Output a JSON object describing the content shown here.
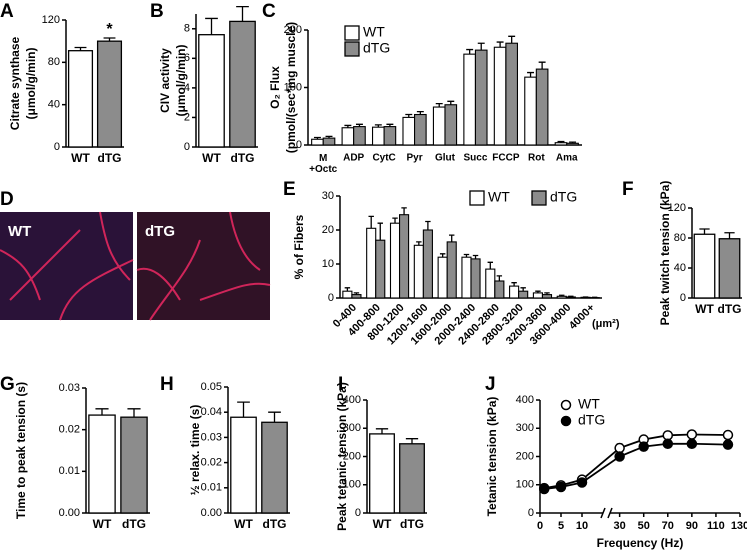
{
  "chart_data": [
    {
      "panel": "A",
      "type": "bar",
      "ylabel": [
        "Citrate synthase",
        "(μmol/g/min)"
      ],
      "categories": [
        "WT",
        "dTG"
      ],
      "values": [
        91,
        100
      ],
      "errors": [
        3,
        3
      ],
      "colors": [
        "#ffffff",
        "#8c8c8c"
      ],
      "ylim": [
        0,
        120
      ],
      "yticks": [
        0,
        40,
        80,
        120
      ],
      "annotation": "*"
    },
    {
      "panel": "B",
      "type": "bar",
      "ylabel": [
        "CIV activity",
        "(μmol/g/min)"
      ],
      "categories": [
        "WT",
        "dTG"
      ],
      "values": [
        7.6,
        8.5
      ],
      "errors": [
        1.1,
        1.0
      ],
      "colors": [
        "#ffffff",
        "#8c8c8c"
      ],
      "ylim": [
        0,
        9
      ],
      "yticks": [
        0,
        2,
        4,
        6,
        8
      ]
    },
    {
      "panel": "C",
      "type": "bar",
      "ylabel": [
        "O₂ Flux",
        "(pmol/(sec*mg muscle)"
      ],
      "categories": [
        "M +Octc",
        "ADP",
        "CytC",
        "Pyr",
        "Glut",
        "Succ",
        "FCCP",
        "Rot",
        "Ama"
      ],
      "series": [
        {
          "name": "WT",
          "color": "#ffffff",
          "values": [
            10,
            30,
            31,
            48,
            66,
            158,
            170,
            118,
            4
          ],
          "errors": [
            3,
            4,
            4,
            5,
            6,
            8,
            9,
            8,
            2
          ]
        },
        {
          "name": "dTG",
          "color": "#8c8c8c",
          "values": [
            12,
            32,
            32,
            53,
            70,
            165,
            177,
            132,
            3
          ],
          "errors": [
            3,
            4,
            4,
            5,
            6,
            12,
            12,
            12,
            2
          ]
        }
      ],
      "ylim": [
        0,
        200
      ],
      "yticks": [
        0,
        100,
        200
      ]
    },
    {
      "panel": "E",
      "type": "bar",
      "ylabel": "% of Fibers",
      "xlabel": "(μm²)",
      "categories": [
        "0-400",
        "400-800",
        "800-1200",
        "1200-1600",
        "1600-2000",
        "2000-2400",
        "2400-2800",
        "2800-3200",
        "3200-3600",
        "3600-4000",
        "4000+"
      ],
      "series": [
        {
          "name": "WT",
          "color": "#ffffff",
          "values": [
            2,
            20.5,
            22,
            15.5,
            12,
            12,
            8.5,
            3.5,
            1.5,
            0.5,
            0.2
          ],
          "errors": [
            1,
            3.5,
            1.5,
            1,
            1,
            0.8,
            2,
            1,
            0.5,
            0.3,
            0.1
          ]
        },
        {
          "name": "dTG",
          "color": "#8c8c8c",
          "values": [
            1,
            17,
            24.5,
            20,
            16.5,
            11.5,
            5,
            2,
            1,
            0.3,
            0.1
          ],
          "errors": [
            0.5,
            5,
            2,
            2.5,
            2,
            1,
            1.5,
            1,
            0.5,
            0.2,
            0.1
          ]
        }
      ],
      "ylim": [
        0,
        30
      ],
      "yticks": [
        0,
        10,
        20,
        30
      ]
    },
    {
      "panel": "F",
      "type": "bar",
      "ylabel": "Peak twitch tension (kPa)",
      "categories": [
        "WT",
        "dTG"
      ],
      "values": [
        85,
        79
      ],
      "errors": [
        7,
        8
      ],
      "colors": [
        "#ffffff",
        "#8c8c8c"
      ],
      "ylim": [
        0,
        120
      ],
      "yticks": [
        0,
        40,
        80,
        120
      ]
    },
    {
      "panel": "G",
      "type": "bar",
      "ylabel": "Time to peak tension (s)",
      "categories": [
        "WT",
        "dTG"
      ],
      "values": [
        0.0235,
        0.023
      ],
      "errors": [
        0.0015,
        0.002
      ],
      "colors": [
        "#ffffff",
        "#8c8c8c"
      ],
      "ylim": [
        0,
        0.03
      ],
      "yticks": [
        {
          "value": 0,
          "label": "0.00"
        },
        0.01,
        0.02,
        0.03
      ]
    },
    {
      "panel": "H",
      "type": "bar",
      "ylabel": "½ relax. time (s)",
      "categories": [
        "WT",
        "dTG"
      ],
      "values": [
        0.038,
        0.036
      ],
      "errors": [
        0.006,
        0.004
      ],
      "colors": [
        "#ffffff",
        "#8c8c8c"
      ],
      "ylim": [
        0,
        0.05
      ],
      "yticks": [
        {
          "value": 0,
          "label": "0.00"
        },
        0.01,
        0.02,
        0.03,
        0.04,
        0.05
      ]
    },
    {
      "panel": "I",
      "type": "bar",
      "ylabel": "Peak tetanic tension (kPa)",
      "categories": [
        "WT",
        "dTG"
      ],
      "values": [
        280,
        245
      ],
      "errors": [
        18,
        18
      ],
      "colors": [
        "#ffffff",
        "#8c8c8c"
      ],
      "ylim": [
        0,
        400
      ],
      "yticks": [
        0,
        100,
        200,
        300,
        400
      ]
    },
    {
      "panel": "J",
      "type": "line",
      "ylabel": "Tetanic tension (kPa)",
      "xlabel": "Frequency (Hz)",
      "x": [
        1,
        5,
        10,
        30,
        50,
        70,
        90,
        120
      ],
      "series": [
        {
          "name": "WT",
          "color": "#ffffff",
          "values": [
            88,
            98,
            118,
            230,
            260,
            275,
            278,
            276
          ],
          "errors": [
            6,
            6,
            8,
            14,
            12,
            12,
            12,
            12
          ]
        },
        {
          "name": "dTG",
          "color": "#000000",
          "values": [
            85,
            92,
            108,
            200,
            235,
            245,
            245,
            242
          ],
          "errors": [
            6,
            6,
            8,
            14,
            14,
            14,
            14,
            14
          ]
        }
      ],
      "xlim": [
        0,
        130
      ],
      "xbreak": [
        15,
        22
      ],
      "xticks": [
        0,
        5,
        10,
        30,
        50,
        70,
        90,
        110,
        130
      ],
      "ylim": [
        0,
        400
      ],
      "yticks": [
        0,
        100,
        200,
        300,
        400
      ]
    }
  ],
  "micrographs": {
    "panel": "D",
    "labels": [
      "WT",
      "dTG"
    ]
  }
}
